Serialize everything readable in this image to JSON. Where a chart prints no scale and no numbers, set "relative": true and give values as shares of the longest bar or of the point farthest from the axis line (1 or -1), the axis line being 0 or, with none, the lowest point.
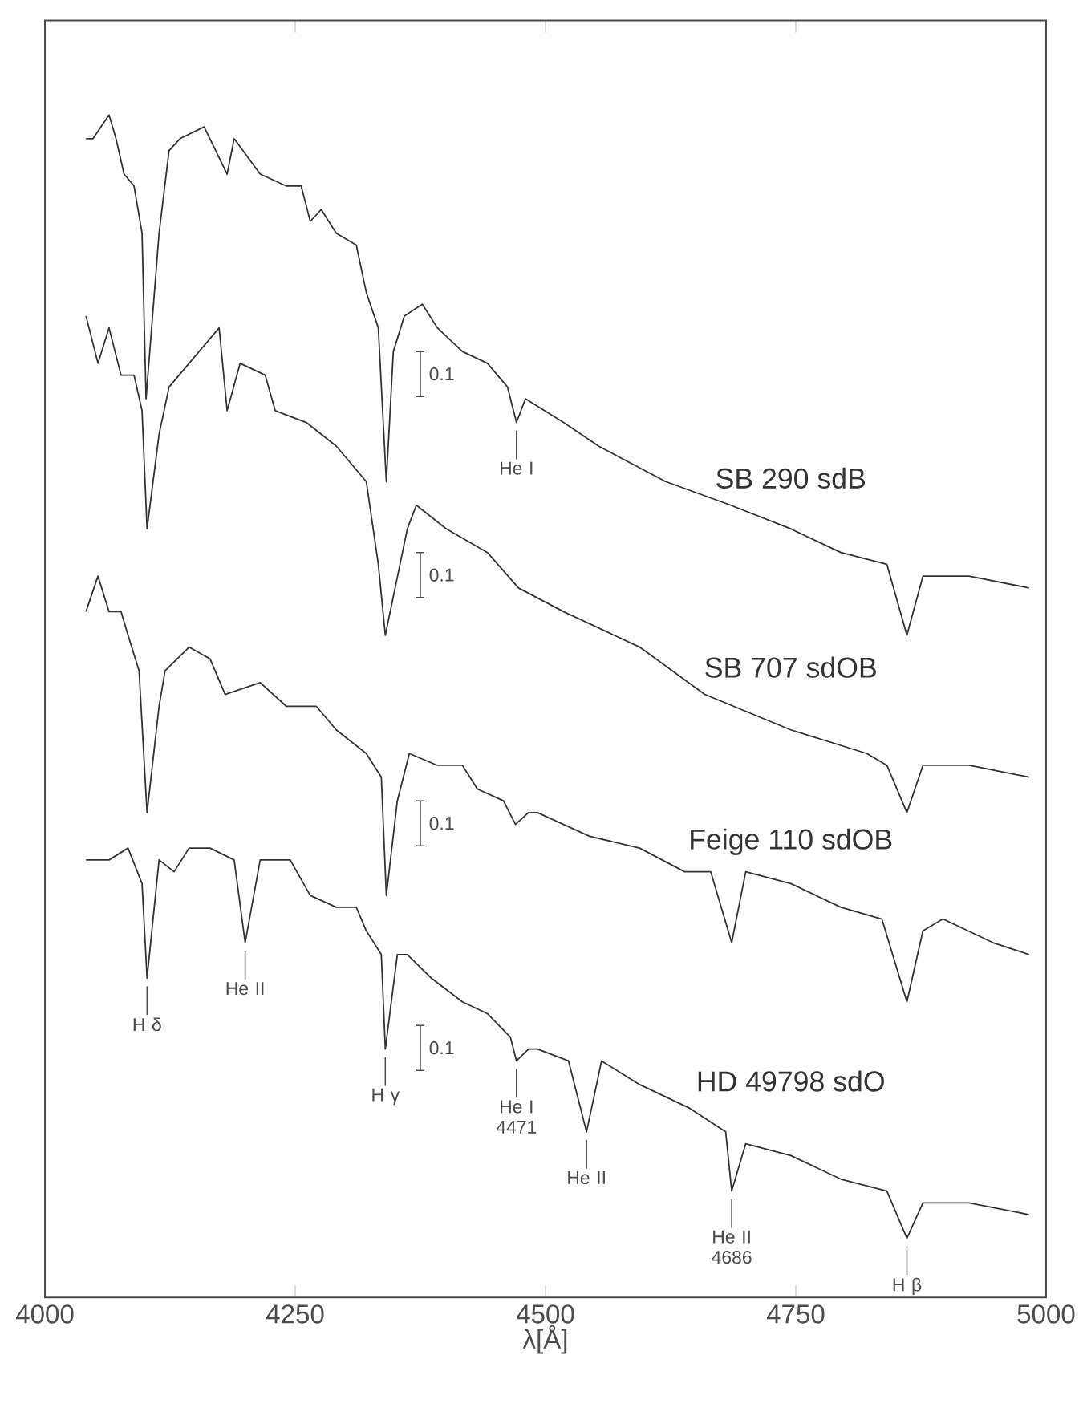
{
  "chart_data": {
    "type": "line",
    "relative": true,
    "xlabel": "λ[Å]",
    "xlim": [
      4000,
      5000
    ],
    "xticks": [
      4000,
      4250,
      4500,
      4750,
      5000
    ],
    "series": [
      {
        "name": "SB 290   sdB",
        "color": "#333333",
        "x": [
          4041,
          4048,
          4064,
          4071,
          4079,
          4089,
          4097,
          4101,
          4114,
          4124,
          4135,
          4159,
          4182,
          4189,
          4215,
          4241,
          4256,
          4265,
          4276,
          4291,
          4311,
          4321,
          4333,
          4341,
          4348,
          4359,
          4377,
          4392,
          4417,
          4442,
          4462,
          4471,
          4480,
          4518,
          4553,
          4620,
          4685,
          4745,
          4795,
          4841,
          4861,
          4877,
          4923,
          4983
        ],
        "values": [
          0.98,
          0.98,
          1.0,
          0.98,
          0.95,
          0.94,
          0.9,
          0.76,
          0.9,
          0.97,
          0.98,
          0.99,
          0.95,
          0.98,
          0.95,
          0.94,
          0.94,
          0.91,
          0.92,
          0.9,
          0.89,
          0.85,
          0.82,
          0.69,
          0.8,
          0.83,
          0.84,
          0.82,
          0.8,
          0.79,
          0.77,
          0.74,
          0.76,
          0.74,
          0.72,
          0.69,
          0.67,
          0.65,
          0.63,
          0.62,
          0.56,
          0.61,
          0.61,
          0.6
        ]
      },
      {
        "name": "SB 707    sdOB",
        "color": "#333333",
        "x": [
          4041,
          4053,
          4064,
          4076,
          4089,
          4097,
          4102,
          4114,
          4124,
          4144,
          4174,
          4182,
          4195,
          4220,
          4230,
          4261,
          4291,
          4321,
          4333,
          4340,
          4362,
          4371,
          4401,
          4442,
          4473,
          4518,
          4594,
          4659,
          4745,
          4821,
          4841,
          4861,
          4877,
          4923,
          4983
        ],
        "values": [
          0.83,
          0.79,
          0.82,
          0.78,
          0.78,
          0.75,
          0.65,
          0.73,
          0.77,
          0.79,
          0.82,
          0.75,
          0.79,
          0.78,
          0.75,
          0.74,
          0.72,
          0.69,
          0.62,
          0.56,
          0.65,
          0.67,
          0.65,
          0.63,
          0.6,
          0.58,
          0.55,
          0.51,
          0.48,
          0.46,
          0.45,
          0.41,
          0.45,
          0.45,
          0.44
        ]
      },
      {
        "name": "Feige 110 sdOB",
        "color": "#333333",
        "x": [
          4041,
          4053,
          4064,
          4076,
          4083,
          4094,
          4102,
          4114,
          4120,
          4144,
          4165,
          4180,
          4215,
          4241,
          4271,
          4291,
          4321,
          4336,
          4341,
          4352,
          4364,
          4392,
          4417,
          4432,
          4458,
          4470,
          4483,
          4492,
          4544,
          4594,
          4639,
          4665,
          4686,
          4700,
          4745,
          4795,
          4836,
          4861,
          4877,
          4897,
          4947,
          4983
        ],
        "values": [
          0.58,
          0.61,
          0.58,
          0.58,
          0.56,
          0.53,
          0.41,
          0.5,
          0.53,
          0.55,
          0.54,
          0.51,
          0.52,
          0.5,
          0.5,
          0.48,
          0.46,
          0.44,
          0.34,
          0.42,
          0.46,
          0.45,
          0.45,
          0.43,
          0.42,
          0.4,
          0.41,
          0.41,
          0.39,
          0.38,
          0.36,
          0.36,
          0.3,
          0.36,
          0.35,
          0.33,
          0.32,
          0.25,
          0.31,
          0.32,
          0.3,
          0.29
        ]
      },
      {
        "name": "HD 49798  sdO",
        "color": "#333333",
        "x": [
          4041,
          4064,
          4083,
          4097,
          4102,
          4114,
          4129,
          4144,
          4165,
          4189,
          4200,
          4215,
          4245,
          4265,
          4291,
          4311,
          4321,
          4336,
          4340,
          4352,
          4362,
          4386,
          4417,
          4442,
          4465,
          4471,
          4483,
          4492,
          4523,
          4541,
          4556,
          4594,
          4644,
          4680,
          4686,
          4700,
          4745,
          4795,
          4841,
          4861,
          4877,
          4923,
          4983
        ],
        "values": [
          0.37,
          0.37,
          0.38,
          0.35,
          0.27,
          0.37,
          0.36,
          0.38,
          0.38,
          0.37,
          0.3,
          0.37,
          0.37,
          0.34,
          0.33,
          0.33,
          0.31,
          0.29,
          0.21,
          0.29,
          0.29,
          0.27,
          0.25,
          0.24,
          0.22,
          0.2,
          0.21,
          0.21,
          0.2,
          0.14,
          0.2,
          0.18,
          0.16,
          0.14,
          0.09,
          0.13,
          0.12,
          0.1,
          0.09,
          0.05,
          0.08,
          0.08,
          0.07
        ]
      }
    ],
    "annotations": [
      {
        "text": "He I",
        "x": 4471,
        "y": 0.74
      },
      {
        "text": "H δ",
        "x": 4102,
        "y": 0.27
      },
      {
        "text": "He II",
        "x": 4200,
        "y": 0.3
      },
      {
        "text": "H γ",
        "x": 4340,
        "y": 0.21
      },
      {
        "text": "He I 4471",
        "x": 4471,
        "y": 0.2
      },
      {
        "text": "He II",
        "x": 4541,
        "y": 0.14
      },
      {
        "text": "He II 4686",
        "x": 4686,
        "y": 0.09
      },
      {
        "text": "H β",
        "x": 4861,
        "y": 0.05
      },
      "0.1",
      "0.1",
      "0.1",
      "0.1"
    ]
  }
}
